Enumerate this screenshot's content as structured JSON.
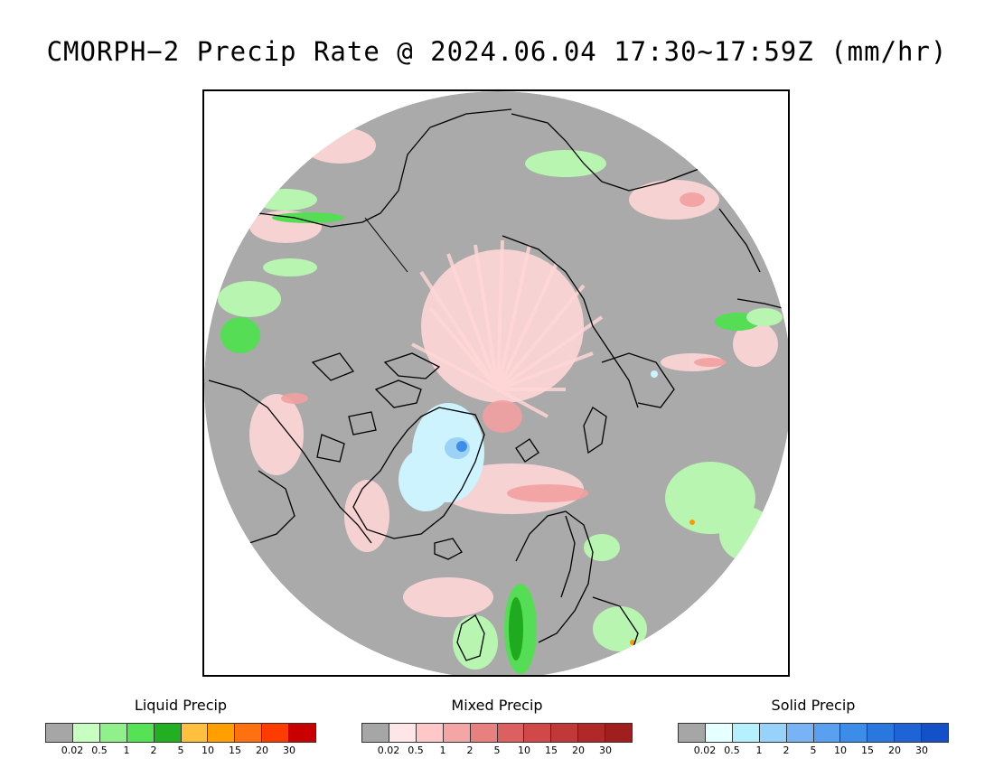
{
  "title": "CMORPH−2 Precip Rate @ 2024.06.04 17:30~17:59Z (mm/hr)",
  "map": {
    "projection": "north-polar-stereographic",
    "colors": {
      "ocean_nodata": "#aaaaaa",
      "coast": "#000000",
      "mixed_light": "#ffd6d6",
      "mixed_med": "#f2a0a0",
      "liquid_light": "#b8f5b0",
      "liquid_med": "#55dd55",
      "liquid_dark": "#1faa1f",
      "solid_light": "#ccf3ff",
      "solid_med": "#9cd2f5",
      "solid_dark": "#3d8ee8",
      "orange": "#ff9900"
    }
  },
  "legends": [
    {
      "title": "Liquid Precip",
      "colors": [
        "#a6a6a6",
        "#c7ffc0",
        "#90f08a",
        "#55e355",
        "#22b022",
        "#ffc040",
        "#ffa000",
        "#ff7010",
        "#ff3c00",
        "#c80000"
      ],
      "ticks": [
        "0.02",
        "0.5",
        "1",
        "2",
        "5",
        "10",
        "15",
        "20",
        "30"
      ]
    },
    {
      "title": "Mixed Precip",
      "colors": [
        "#a6a6a6",
        "#ffe6e6",
        "#ffc8c8",
        "#f4a6a6",
        "#e88080",
        "#dd6060",
        "#d04848",
        "#c03838",
        "#b02828",
        "#a01e1e"
      ],
      "ticks": [
        "0.02",
        "0.5",
        "1",
        "2",
        "5",
        "10",
        "15",
        "20",
        "30"
      ]
    },
    {
      "title": "Solid Precip",
      "colors": [
        "#a6a6a6",
        "#e6ffff",
        "#b4f0ff",
        "#96d2fa",
        "#78b4f5",
        "#5aa0f0",
        "#3c8cea",
        "#2878e0",
        "#1e64d6",
        "#1450c8"
      ],
      "ticks": [
        "0.02",
        "0.5",
        "1",
        "2",
        "5",
        "10",
        "15",
        "20",
        "30"
      ]
    }
  ]
}
